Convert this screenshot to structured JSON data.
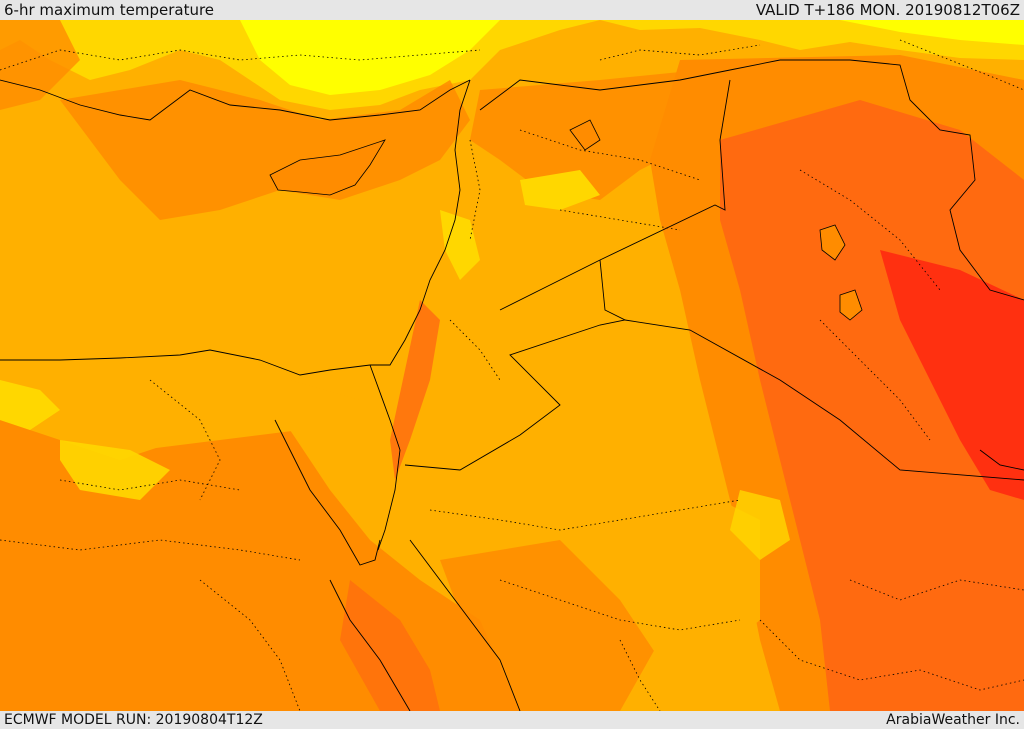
{
  "header": {
    "title": "6-hr maximum temperature",
    "valid": "VALID T+186 MON. 20190812T06Z"
  },
  "footer": {
    "model_run": "ECMWF MODEL RUN: 20190804T12Z",
    "credit": "ArabiaWeather Inc."
  },
  "map": {
    "colors": {
      "yellow": "#ffff00",
      "gold": "#ffd700",
      "amber": "#ffb000",
      "orange": "#ff8c00",
      "dark_orange": "#ff6a10",
      "red_orange": "#ff4a10",
      "red": "#ff3010"
    }
  }
}
